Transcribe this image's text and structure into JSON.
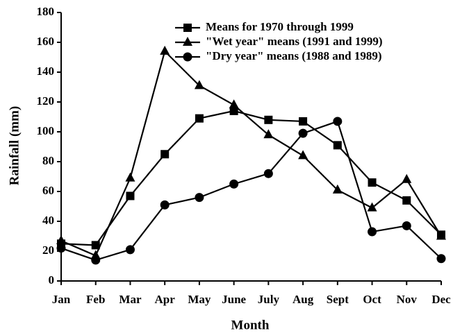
{
  "chart_data": {
    "type": "line",
    "x_label": "Month",
    "y_label": "Rainfall (mm)",
    "categories": [
      "Jan",
      "Feb",
      "Mar",
      "Apr",
      "May",
      "June",
      "July",
      "Aug",
      "Sept",
      "Oct",
      "Nov",
      "Dec"
    ],
    "series": [
      {
        "name": "Means for 1970 through 1999",
        "color": "#000000",
        "marker": "square",
        "values": [
          25,
          24,
          57,
          85,
          109,
          114,
          108,
          107,
          91,
          66,
          54,
          31
        ]
      },
      {
        "name": "\"Wet year\" means (1991 and 1999)",
        "color": "#000000",
        "marker": "triangle",
        "values": [
          27,
          17,
          69,
          154,
          131,
          118,
          98,
          84,
          61,
          49,
          68,
          30
        ]
      },
      {
        "name": "\"Dry year\" means (1988 and 1989)",
        "color": "#000000",
        "marker": "circle",
        "values": [
          22,
          14,
          21,
          51,
          56,
          65,
          72,
          99,
          107,
          33,
          37,
          15
        ]
      }
    ],
    "ylim": [
      0,
      180
    ],
    "yticks": [
      0,
      20,
      40,
      60,
      80,
      100,
      120,
      140,
      160,
      180
    ],
    "grid": false,
    "legend": "upper right"
  }
}
